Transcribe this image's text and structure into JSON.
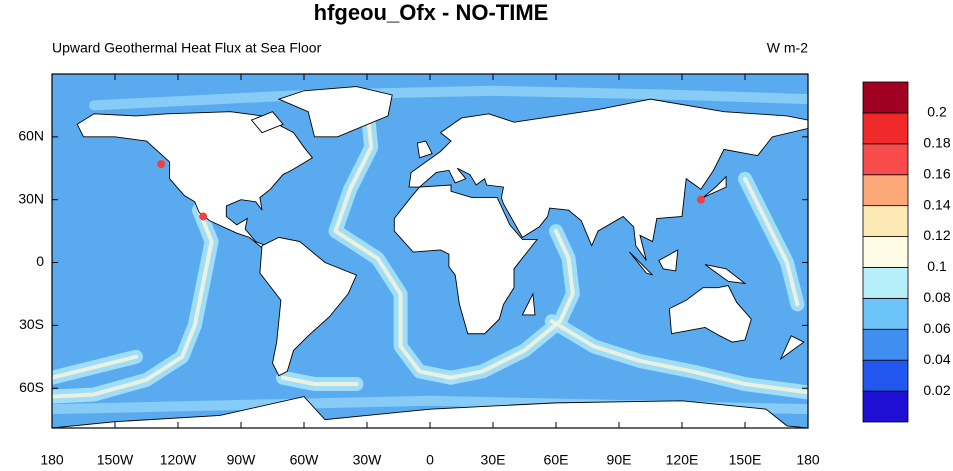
{
  "chart_data": {
    "type": "map",
    "title": "hfgeou_Ofx - NO-TIME",
    "subtitle": "Upward Geothermal Heat Flux at Sea Floor",
    "units": "W m-2",
    "xlim": [
      -180,
      180
    ],
    "ylim": [
      -79,
      90
    ],
    "xticks": [
      {
        "value": -180,
        "label": "180"
      },
      {
        "value": -150,
        "label": "150W"
      },
      {
        "value": -120,
        "label": "120W"
      },
      {
        "value": -90,
        "label": "90W"
      },
      {
        "value": -60,
        "label": "60W"
      },
      {
        "value": -30,
        "label": "30W"
      },
      0,
      {
        "value": 30,
        "label": "30E"
      },
      {
        "value": 60,
        "label": "60E"
      },
      {
        "value": 90,
        "label": "90E"
      },
      {
        "value": 120,
        "label": "120E"
      },
      {
        "value": 150,
        "label": "150E"
      },
      {
        "value": 180,
        "label": "180"
      }
    ],
    "yticks": [
      {
        "value": 60,
        "label": "60N"
      },
      {
        "value": 30,
        "label": "30N"
      },
      0,
      {
        "value": -30,
        "label": "30S"
      },
      {
        "value": -60,
        "label": "60S"
      }
    ],
    "colorbar": {
      "levels": [
        0.02,
        0.04,
        0.06,
        0.08,
        0.1,
        0.12,
        0.14,
        0.16,
        0.18,
        0.2
      ],
      "colors": [
        "#1e0fd2",
        "#2258f0",
        "#3f8ef0",
        "#6cc4f8",
        "#b6eefa",
        "#fdfbe6",
        "#fde9b4",
        "#fca878",
        "#f84c4c",
        "#f02a2a",
        "#a00022"
      ]
    }
  }
}
